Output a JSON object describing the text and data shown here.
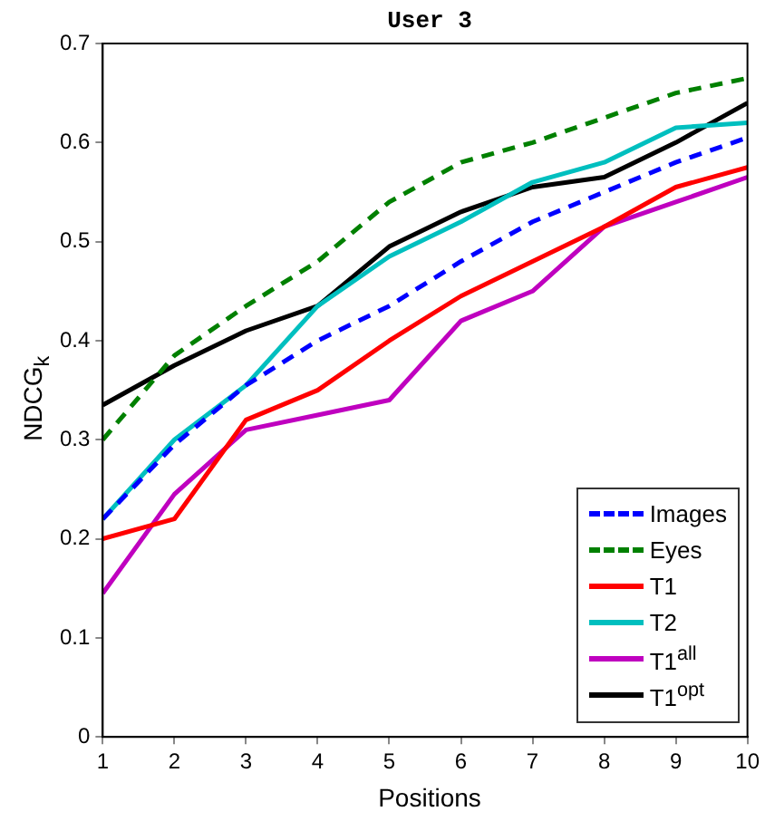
{
  "chart_data": {
    "type": "line",
    "title": "User 3",
    "xlabel": "Positions",
    "ylabel": "NDCG$_{k}$",
    "x": [
      1,
      2,
      3,
      4,
      5,
      6,
      7,
      8,
      9,
      10
    ],
    "xlim": [
      1,
      10
    ],
    "xticks": [
      1,
      2,
      3,
      4,
      5,
      6,
      7,
      8,
      9,
      10
    ],
    "ylim": [
      0,
      0.7
    ],
    "yticks": [
      0,
      0.1,
      0.2,
      0.3,
      0.4,
      0.5,
      0.6,
      0.7
    ],
    "grid": false,
    "legend": "bottom right",
    "marker": "none",
    "series": [
      {
        "name": "Images",
        "color": "#0000ff",
        "line_style": "dashed",
        "values": [
          0.22,
          0.295,
          0.355,
          0.4,
          0.435,
          0.48,
          0.52,
          0.55,
          0.58,
          0.605
        ]
      },
      {
        "name": "Eyes",
        "color": "#008000",
        "line_style": "dashed",
        "values": [
          0.3,
          0.385,
          0.435,
          0.48,
          0.54,
          0.58,
          0.6,
          0.625,
          0.65,
          0.665
        ]
      },
      {
        "name": "T1",
        "color": "#ff0000",
        "line_style": "solid",
        "values": [
          0.2,
          0.22,
          0.32,
          0.35,
          0.4,
          0.445,
          0.48,
          0.515,
          0.555,
          0.575
        ]
      },
      {
        "name": "T2",
        "color": "#00bfbf",
        "line_style": "solid",
        "values": [
          0.22,
          0.3,
          0.355,
          0.435,
          0.485,
          0.52,
          0.56,
          0.58,
          0.615,
          0.62
        ]
      },
      {
        "name": "T1$^{all}$",
        "color": "#bf00bf",
        "line_style": "solid",
        "values": [
          0.145,
          0.245,
          0.31,
          0.325,
          0.34,
          0.42,
          0.45,
          0.515,
          0.54,
          0.565
        ]
      },
      {
        "name": "T1$^{opt}$",
        "color": "#000000",
        "line_style": "solid",
        "values": [
          0.335,
          0.375,
          0.41,
          0.435,
          0.495,
          0.53,
          0.555,
          0.565,
          0.6,
          0.64
        ]
      }
    ]
  }
}
